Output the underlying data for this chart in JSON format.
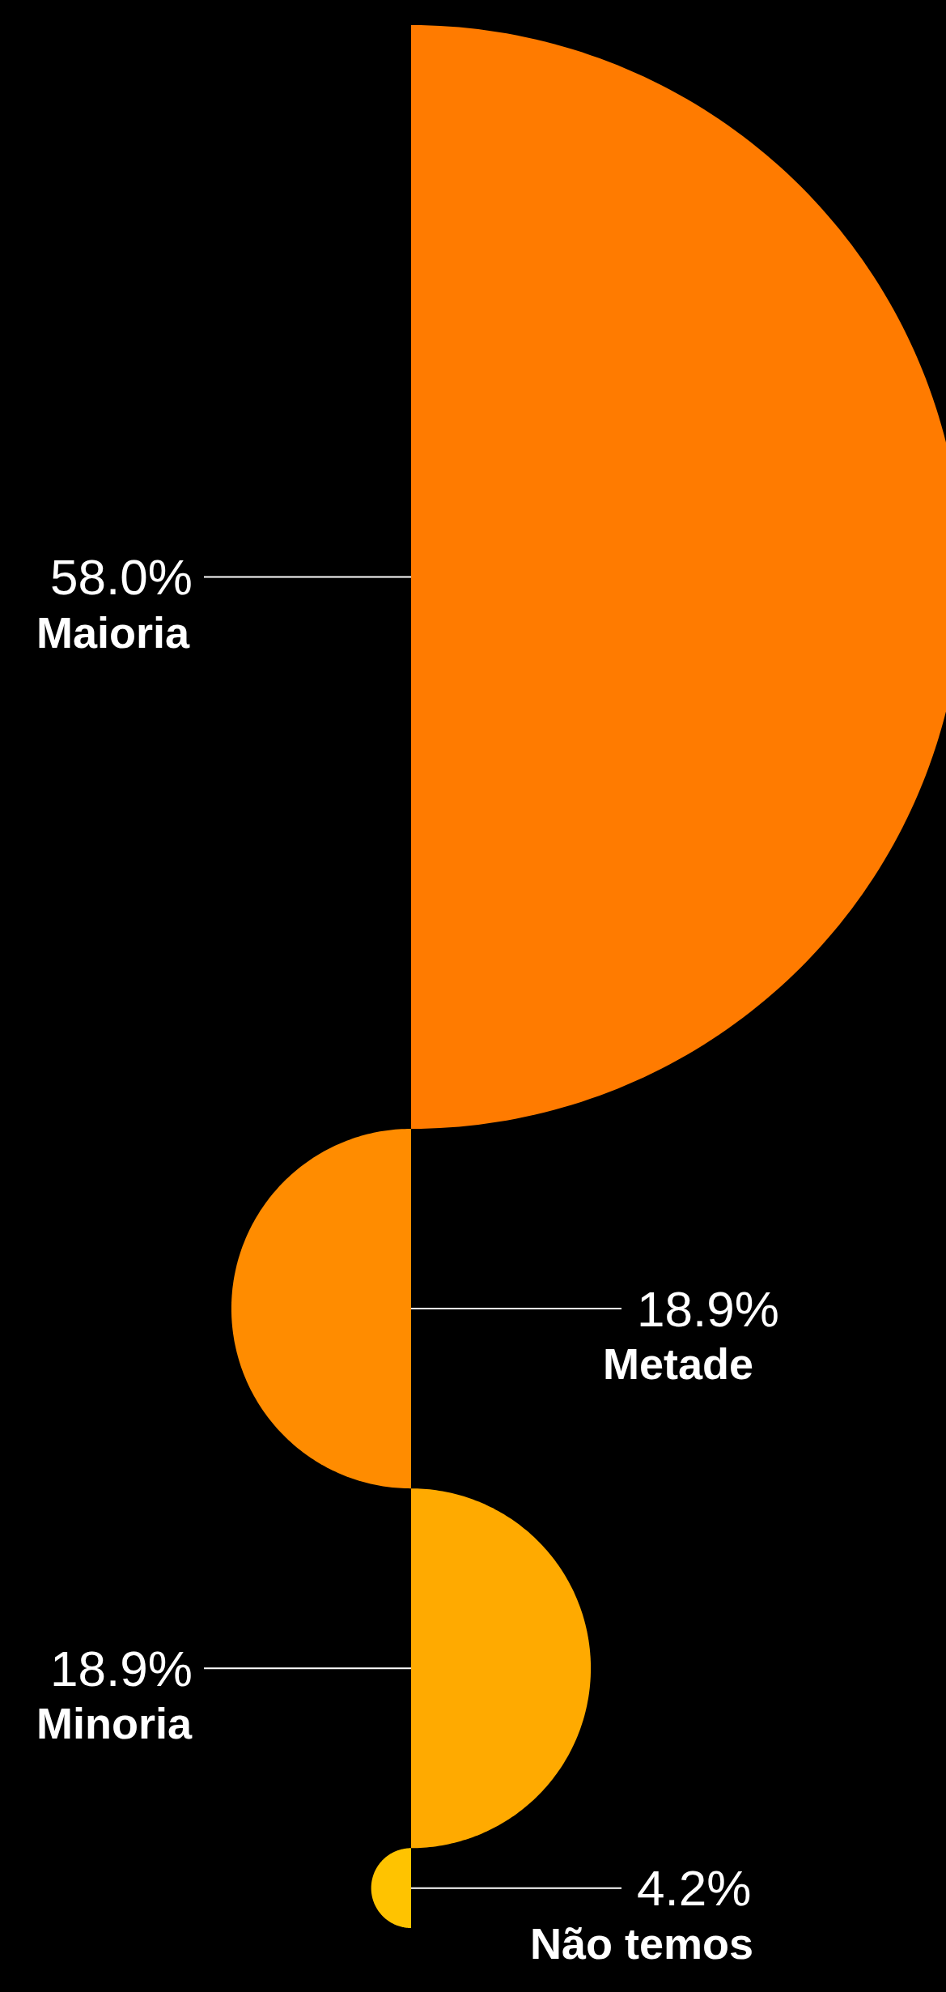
{
  "chart_data": {
    "type": "other",
    "categories": [
      "Maioria",
      "Metade",
      "Minoria",
      "Não temos"
    ],
    "values": [
      58.0,
      18.9,
      18.9,
      4.2
    ],
    "value_labels": [
      "58.0%",
      "18.9%",
      "18.9%",
      "4.2%"
    ],
    "colors": [
      "#ff7b00",
      "#ff8c00",
      "#ffaa00",
      "#ffc300"
    ]
  }
}
